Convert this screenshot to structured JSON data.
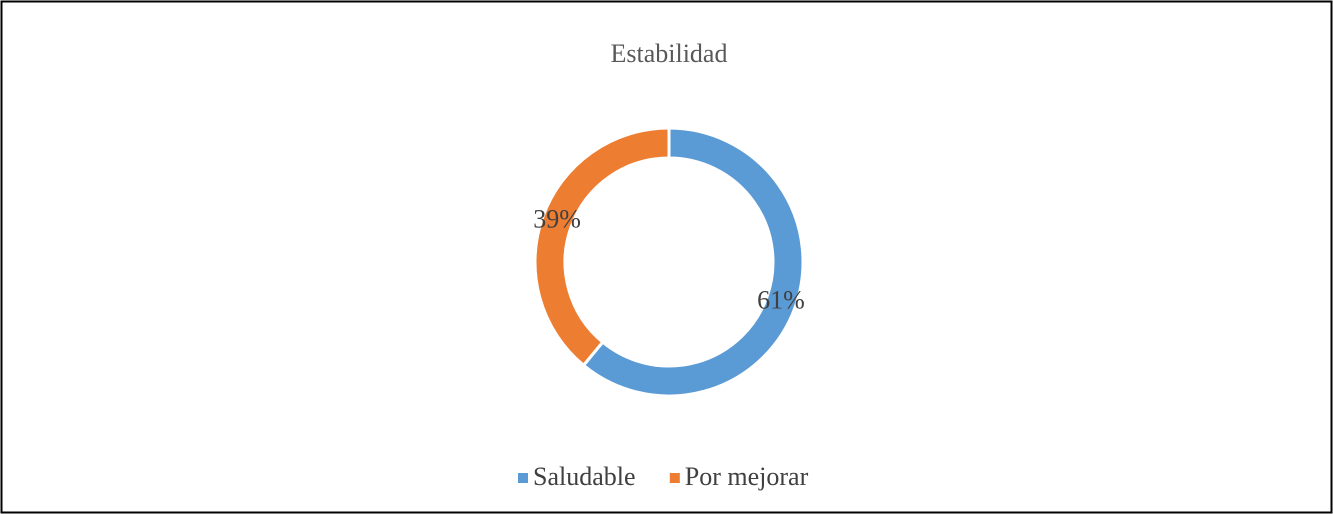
{
  "chart_data": {
    "type": "donut",
    "title": "Estabilidad",
    "categories": [
      "Saludable",
      "Por mejorar"
    ],
    "values": [
      61,
      39
    ],
    "value_labels": [
      "61%",
      "39%"
    ],
    "colors": [
      "#5b9bd5",
      "#ed7d31"
    ],
    "legend": "bottom"
  }
}
